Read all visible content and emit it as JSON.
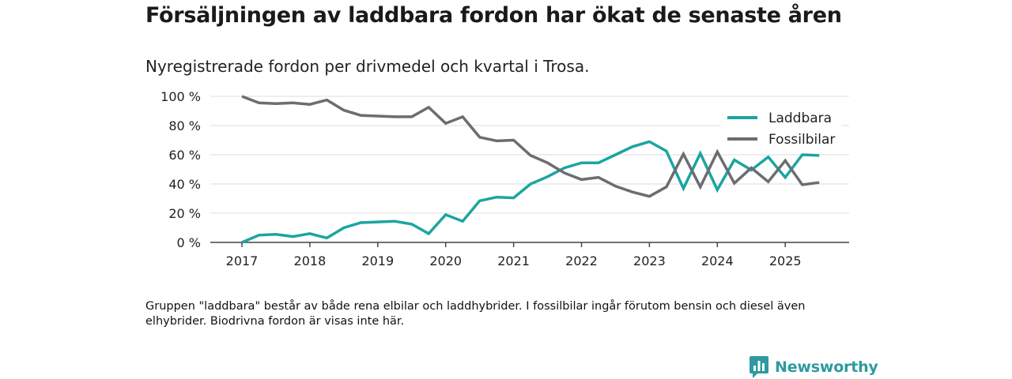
{
  "title": "Försäljningen av laddbara fordon har ökat de senaste åren",
  "subtitle": "Nyregistrerade fordon per drivmedel och kvartal i Trosa.",
  "note": "Gruppen \"laddbara\" består av både rena elbilar och laddhybrider. I fossilbilar ingår förutom bensin och diesel även elhybrider. Biodrivna fordon är visas inte här.",
  "brand": {
    "name": "Newsworthy"
  },
  "chart_data": {
    "type": "line",
    "title": "Försäljningen av laddbara fordon har ökat de senaste åren",
    "subtitle": "Nyregistrerade fordon per drivmedel och kvartal i Trosa.",
    "xlabel": "",
    "ylabel": "",
    "ylim": [
      0,
      100
    ],
    "y_ticks": [
      0,
      20,
      40,
      60,
      80,
      100
    ],
    "y_tick_labels": [
      "0 %",
      "20 %",
      "40 %",
      "60 %",
      "80 %",
      "100 %"
    ],
    "x_ticks": [
      "2017",
      "2018",
      "2019",
      "2020",
      "2021",
      "2022",
      "2023",
      "2024",
      "2025"
    ],
    "x_start_year": 2017,
    "quarters_per_year": 4,
    "legend_position": "top-right",
    "series": [
      {
        "name": "Laddbara",
        "color": "#1ba5a0",
        "values": [
          0,
          5,
          5.5,
          4,
          6,
          3,
          10,
          13.5,
          14,
          14.5,
          12.5,
          6,
          19,
          14.5,
          28.5,
          31,
          30.5,
          40,
          45,
          51,
          54.5,
          54.5,
          60,
          65.5,
          69,
          62.5,
          37,
          61,
          36,
          56.5,
          49.5,
          58.5,
          44.5,
          60,
          59.5
        ]
      },
      {
        "name": "Fossilbilar",
        "color": "#6c6c72",
        "values": [
          100,
          95.5,
          95,
          95.5,
          94.5,
          97.5,
          90.5,
          87,
          86.5,
          86,
          86,
          92.5,
          81.5,
          86,
          72,
          69.5,
          70,
          59.5,
          54.5,
          47.5,
          43,
          44.5,
          38.5,
          34.5,
          31.5,
          38,
          60.5,
          38,
          62,
          40.5,
          51,
          41.5,
          56,
          39.5,
          41
        ]
      }
    ]
  }
}
